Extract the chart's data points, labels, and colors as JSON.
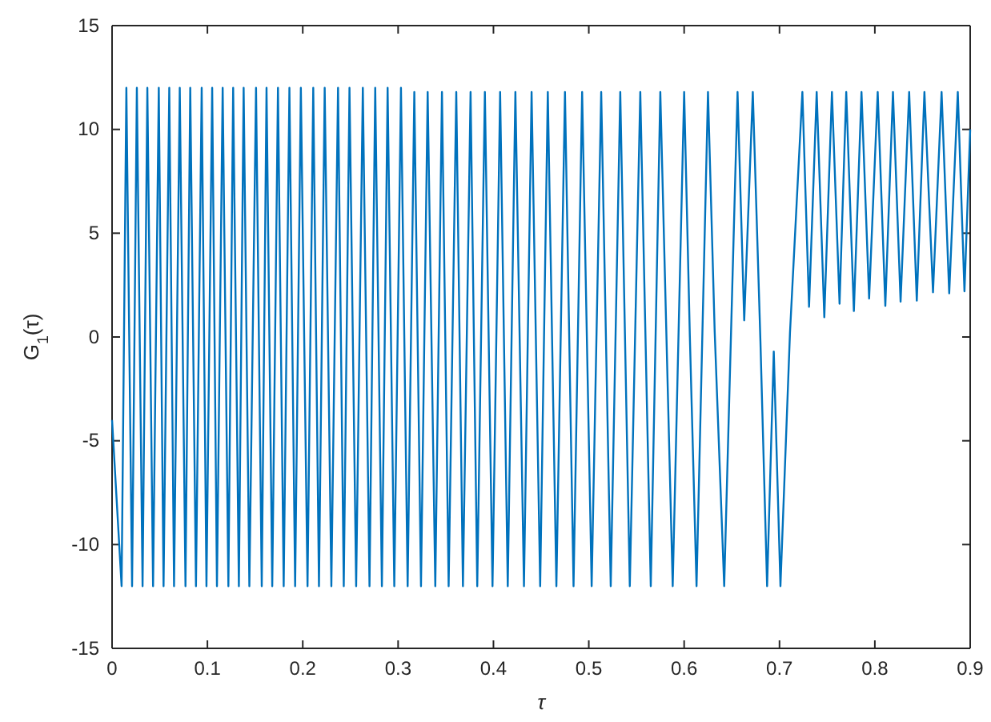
{
  "chart_data": {
    "type": "line",
    "xlabel": "τ",
    "ylabel": "G$_{1}$(τ)",
    "xlim": [
      0,
      0.9
    ],
    "xticks": [
      0,
      0.1,
      0.2,
      0.3,
      0.4,
      0.5,
      0.6,
      0.7,
      0.8,
      0.9
    ],
    "ylim": [
      -15,
      15
    ],
    "yticks": [
      -15,
      -10,
      -5,
      0,
      5,
      10,
      15
    ],
    "grid": false,
    "marker": "none",
    "line_style": "solid",
    "series": [
      {
        "color": "#0072bd",
        "x": [
          0,
          0.01,
          0.015,
          0.021,
          0.026,
          0.032,
          0.037,
          0.043,
          0.049,
          0.054,
          0.06,
          0.065,
          0.071,
          0.077,
          0.082,
          0.088,
          0.094,
          0.099,
          0.105,
          0.11,
          0.116,
          0.122,
          0.127,
          0.133,
          0.138,
          0.144,
          0.151,
          0.157,
          0.162,
          0.168,
          0.174,
          0.18,
          0.186,
          0.192,
          0.198,
          0.205,
          0.211,
          0.217,
          0.223,
          0.23,
          0.237,
          0.243,
          0.249,
          0.256,
          0.263,
          0.27,
          0.276,
          0.283,
          0.289,
          0.296,
          0.303,
          0.31,
          0.317,
          0.324,
          0.331,
          0.339,
          0.346,
          0.353,
          0.361,
          0.368,
          0.376,
          0.383,
          0.391,
          0.399,
          0.407,
          0.415,
          0.423,
          0.432,
          0.44,
          0.449,
          0.457,
          0.466,
          0.475,
          0.484,
          0.493,
          0.503,
          0.513,
          0.523,
          0.533,
          0.543,
          0.554,
          0.565,
          0.575,
          0.588,
          0.6,
          0.606,
          0.613,
          0.625,
          0.632,
          0.642,
          0.656,
          0.663,
          0.672,
          0.68,
          0.687,
          0.694,
          0.701,
          0.711,
          0.724,
          0.731,
          0.739,
          0.747,
          0.755,
          0.763,
          0.77,
          0.778,
          0.786,
          0.794,
          0.803,
          0.811,
          0.819,
          0.827,
          0.836,
          0.844,
          0.852,
          0.861,
          0.87,
          0.878,
          0.887,
          0.894,
          0.9
        ],
        "values": [
          -4,
          -12,
          12,
          -12,
          12,
          -12,
          12,
          -12,
          12,
          -12,
          12,
          -12,
          12,
          -12,
          12,
          -12,
          12,
          -12,
          12,
          -12,
          12,
          -12,
          12,
          -12,
          12,
          -12,
          12,
          -12,
          12,
          -12,
          12,
          -12,
          12,
          -12,
          12,
          -12,
          12,
          -12,
          12,
          -12,
          12,
          -12,
          12,
          -12,
          12,
          -12,
          12,
          -12,
          12,
          -12,
          12,
          -12,
          11.8,
          -12,
          11.8,
          -12,
          11.8,
          -12,
          11.8,
          -12,
          11.8,
          -12,
          11.8,
          -12,
          11.8,
          -12,
          11.8,
          -12,
          11.8,
          -12,
          11.8,
          -12,
          11.8,
          -12,
          11.8,
          -12,
          11.8,
          -12,
          11.8,
          -12,
          11.8,
          -12,
          11.8,
          -12,
          11.8,
          0,
          -12,
          11.8,
          0.3,
          -12,
          11.8,
          0.8,
          11.8,
          -0.2,
          -12,
          -0.7,
          -12,
          0.2,
          11.8,
          1.45,
          11.8,
          0.95,
          11.8,
          1.6,
          11.8,
          1.25,
          11.8,
          1.85,
          11.8,
          1.5,
          11.8,
          1.7,
          11.8,
          1.75,
          11.8,
          2.15,
          11.8,
          2.1,
          11.8,
          2.2,
          10
        ]
      }
    ]
  }
}
